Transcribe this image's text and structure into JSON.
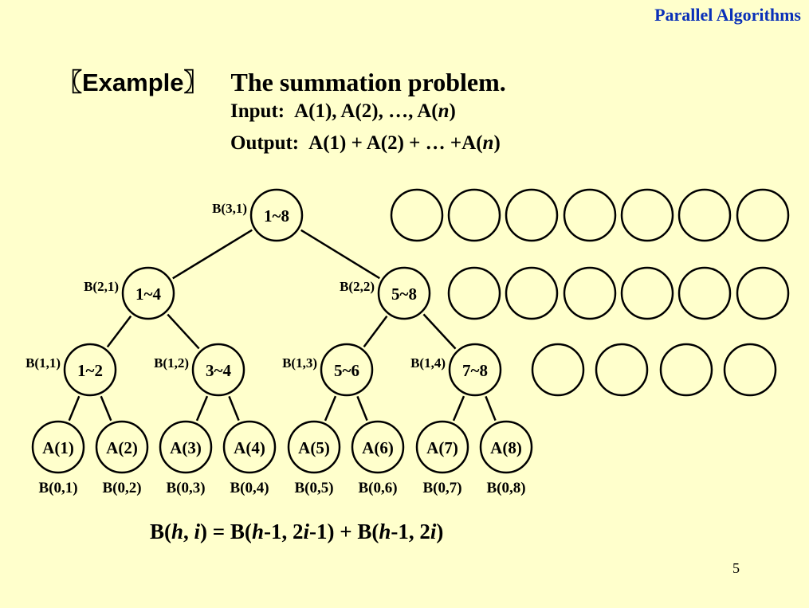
{
  "header": {
    "title": "Parallel Algorithms"
  },
  "example": {
    "tag": "〖Example〗",
    "title": "The summation problem.",
    "input_label": "Input:",
    "input_value": "A(1), A(2), …, A(n)",
    "output_label": "Output:",
    "output_value": "A(1) + A(2) + … +A(n)"
  },
  "tree": {
    "nodes": [
      {
        "label": "1~8",
        "tag": "B(3,1)"
      },
      {
        "label": "1~4",
        "tag": "B(2,1)"
      },
      {
        "label": "5~8",
        "tag": "B(2,2)"
      },
      {
        "label": "1~2",
        "tag": "B(1,1)"
      },
      {
        "label": "3~4",
        "tag": "B(1,2)"
      },
      {
        "label": "5~6",
        "tag": "B(1,3)"
      },
      {
        "label": "7~8",
        "tag": "B(1,4)"
      },
      {
        "label": "A(1)",
        "tag": "B(0,1)"
      },
      {
        "label": "A(2)",
        "tag": "B(0,2)"
      },
      {
        "label": "A(3)",
        "tag": "B(0,3)"
      },
      {
        "label": "A(4)",
        "tag": "B(0,4)"
      },
      {
        "label": "A(5)",
        "tag": "B(0,5)"
      },
      {
        "label": "A(6)",
        "tag": "B(0,6)"
      },
      {
        "label": "A(7)",
        "tag": "B(0,7)"
      },
      {
        "label": "A(8)",
        "tag": "B(0,8)"
      }
    ],
    "edges": [
      [
        0,
        1
      ],
      [
        0,
        2
      ],
      [
        1,
        3
      ],
      [
        1,
        4
      ],
      [
        2,
        5
      ],
      [
        2,
        6
      ],
      [
        3,
        7
      ],
      [
        3,
        8
      ],
      [
        4,
        9
      ],
      [
        4,
        10
      ],
      [
        5,
        11
      ],
      [
        5,
        12
      ],
      [
        6,
        13
      ],
      [
        6,
        14
      ]
    ],
    "idle_processors": [
      7,
      6,
      4
    ]
  },
  "formula": "B(h, i) = B(h-1, 2i-1) + B(h-1, 2i)",
  "page_number": "5"
}
